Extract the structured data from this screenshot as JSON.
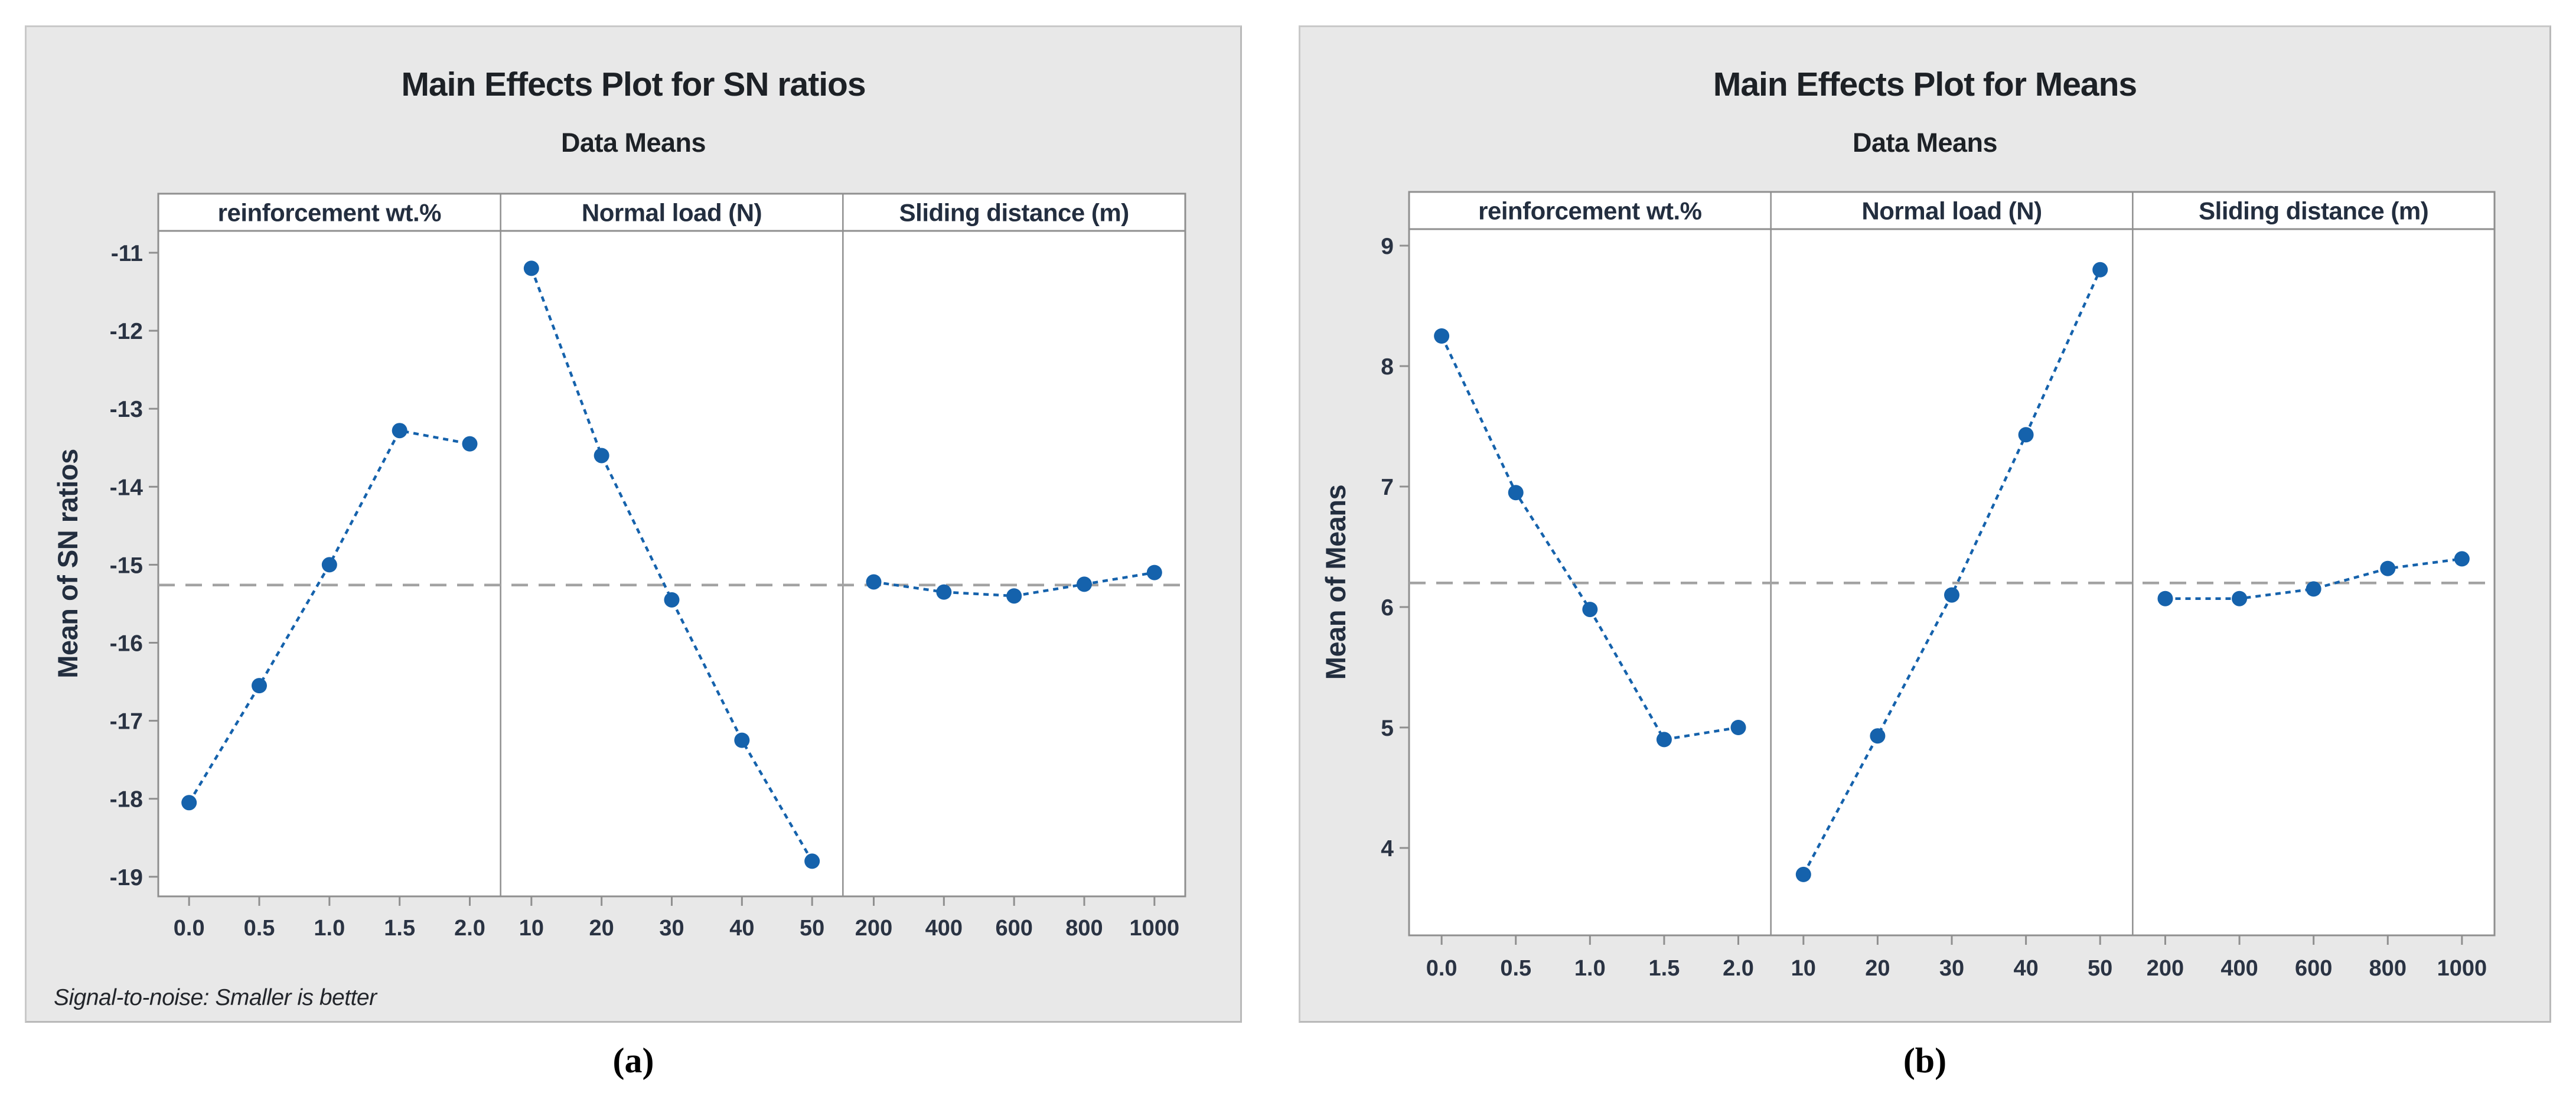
{
  "colors": {
    "series_blue": "#1562ac",
    "mean_line_gray": "#a3a3a3",
    "frame_gray": "#8f8f8f",
    "figure_background": "#e8e8e8",
    "plot_background": "#ffffff",
    "text_dark": "#232e3f"
  },
  "chart_data": [
    {
      "id": "sn-ratios",
      "type": "line",
      "title": "Main Effects Plot for SN ratios",
      "subtitle": "Data Means",
      "ylabel": "Mean of SN ratios",
      "footnote": "Signal-to-noise: Smaller is better",
      "caption": "(a)",
      "legend": "none",
      "grid": "off",
      "mean_reference_line": -15.26,
      "yticks": [
        -11,
        -12,
        -13,
        -14,
        -15,
        -16,
        -17,
        -18,
        -19
      ],
      "ylim": [
        -19.25,
        -10.72
      ],
      "panels": [
        {
          "factor": "reinforcement wt.%",
          "x": [
            "0.0",
            "0.5",
            "1.0",
            "1.5",
            "2.0"
          ],
          "values": [
            -18.05,
            -16.55,
            -15.0,
            -13.28,
            -13.45
          ]
        },
        {
          "factor": "Normal load (N)",
          "x": [
            "10",
            "20",
            "30",
            "40",
            "50"
          ],
          "values": [
            -11.2,
            -13.6,
            -15.45,
            -17.25,
            -18.8
          ]
        },
        {
          "factor": "Sliding distance (m)",
          "x": [
            "200",
            "400",
            "600",
            "800",
            "1000"
          ],
          "values": [
            -15.22,
            -15.35,
            -15.4,
            -15.25,
            -15.1
          ]
        }
      ]
    },
    {
      "id": "means",
      "type": "line",
      "title": "Main Effects Plot for Means",
      "subtitle": "Data Means",
      "ylabel": "Mean of Means",
      "footnote": "",
      "caption": "(b)",
      "legend": "none",
      "grid": "off",
      "mean_reference_line": 6.2,
      "yticks": [
        9,
        8,
        7,
        6,
        5,
        4
      ],
      "ylim": [
        3.6,
        9.14
      ],
      "panels": [
        {
          "factor": "reinforcement wt.%",
          "x": [
            "0.0",
            "0.5",
            "1.0",
            "1.5",
            "2.0"
          ],
          "values": [
            8.25,
            6.95,
            5.98,
            4.9,
            5.0
          ]
        },
        {
          "factor": "Normal load (N)",
          "x": [
            "10",
            "20",
            "30",
            "40",
            "50"
          ],
          "values": [
            3.78,
            4.93,
            6.1,
            7.43,
            8.8
          ]
        },
        {
          "factor": "Sliding distance (m)",
          "x": [
            "200",
            "400",
            "600",
            "800",
            "1000"
          ],
          "values": [
            6.07,
            6.07,
            6.15,
            6.32,
            6.4
          ]
        }
      ]
    }
  ]
}
